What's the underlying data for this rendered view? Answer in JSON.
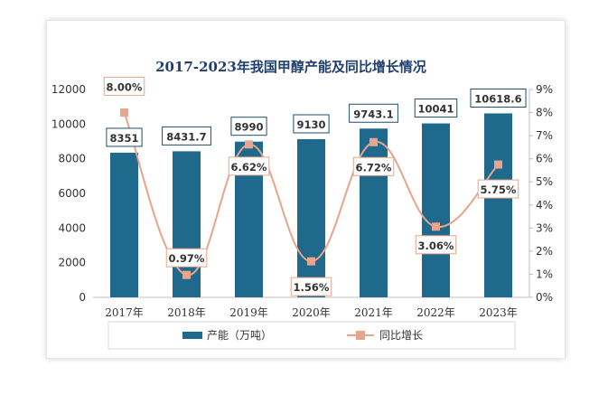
{
  "chart_data": {
    "type": "bar",
    "title": "2017-2023年我国甲醇产能及同比增长情况",
    "categories": [
      "2017年",
      "2018年",
      "2019年",
      "2020年",
      "2021年",
      "2022年",
      "2023年"
    ],
    "series": [
      {
        "name": "产能（万吨）",
        "type": "bar",
        "axis": "left",
        "values": [
          8351,
          8431.7,
          8990,
          9130,
          9743.1,
          10041,
          10618.6
        ],
        "labels": [
          "8351",
          "8431.7",
          "8990",
          "9130",
          "9743.1",
          "10041",
          "10618.6"
        ],
        "color": "#1f6a8c"
      },
      {
        "name": "同比增长",
        "type": "line",
        "axis": "right",
        "values": [
          8.0,
          0.97,
          6.62,
          1.56,
          6.72,
          3.06,
          5.75
        ],
        "labels": [
          "8.00%",
          "0.97%",
          "6.62%",
          "1.56%",
          "6.72%",
          "3.06%",
          "5.75%"
        ],
        "color": "#e8a48c"
      }
    ],
    "left_axis": {
      "min": 0,
      "max": 12000,
      "step": 2000,
      "ticks": [
        "0",
        "2000",
        "4000",
        "6000",
        "8000",
        "10000",
        "12000"
      ]
    },
    "right_axis": {
      "min": 0,
      "max": 9,
      "step": 1,
      "ticks": [
        "0%",
        "1%",
        "2%",
        "3%",
        "4%",
        "5%",
        "6%",
        "7%",
        "8%",
        "9%"
      ]
    },
    "legend": {
      "position": "bottom",
      "items": [
        "产能（万吨）",
        "同比增长"
      ]
    },
    "grid": false
  }
}
